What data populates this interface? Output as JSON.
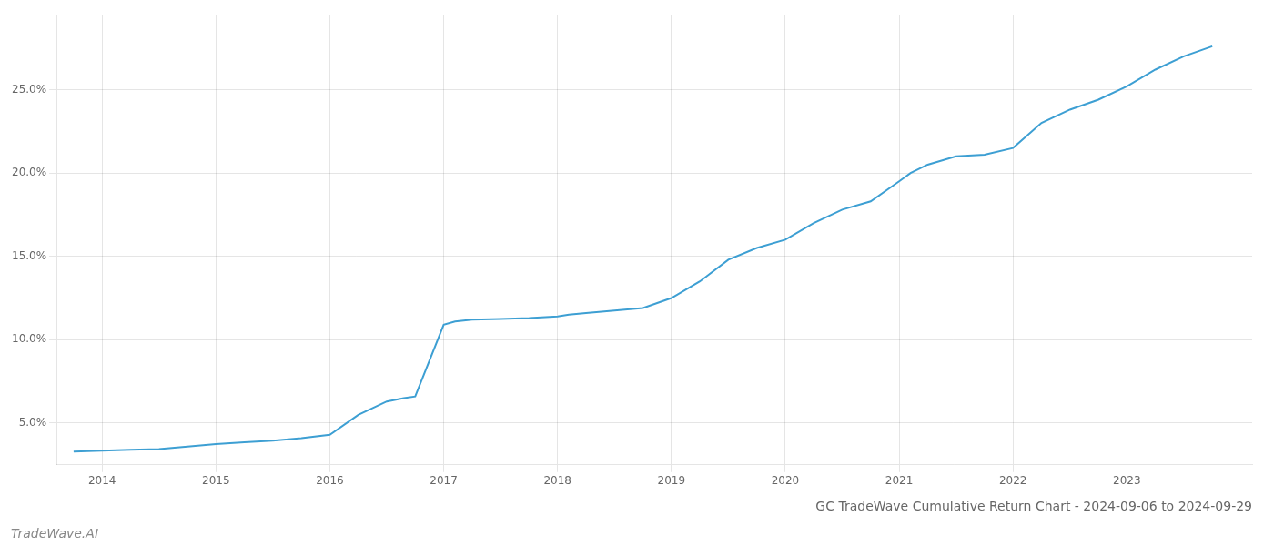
{
  "chart_data": {
    "type": "line",
    "title": "GC TradeWave Cumulative Return Chart - 2024-09-06 to 2024-09-29",
    "annotation": "TradeWave.AI",
    "color": "#3d9fd3",
    "grid": true,
    "x": [
      2013.75,
      2014.0,
      2014.25,
      2014.5,
      2014.75,
      2015.0,
      2015.25,
      2015.5,
      2015.75,
      2016.0,
      2016.25,
      2016.5,
      2016.65,
      2016.75,
      2017.0,
      2017.1,
      2017.25,
      2017.5,
      2017.75,
      2018.0,
      2018.1,
      2018.25,
      2018.5,
      2018.75,
      2019.0,
      2019.25,
      2019.5,
      2019.75,
      2020.0,
      2020.25,
      2020.5,
      2020.75,
      2021.0,
      2021.1,
      2021.25,
      2021.5,
      2021.75,
      2022.0,
      2022.25,
      2022.5,
      2022.75,
      2023.0,
      2023.25,
      2023.5,
      2023.75
    ],
    "values": [
      3.3,
      3.35,
      3.4,
      3.45,
      3.6,
      3.75,
      3.85,
      3.95,
      4.1,
      4.3,
      5.5,
      6.3,
      6.5,
      6.6,
      10.9,
      11.1,
      11.2,
      11.25,
      11.3,
      11.4,
      11.5,
      11.6,
      11.75,
      11.9,
      12.5,
      13.5,
      14.8,
      15.5,
      16.0,
      17.0,
      17.8,
      18.3,
      19.5,
      20.0,
      20.5,
      21.0,
      21.1,
      21.5,
      23.0,
      23.8,
      24.4,
      25.2,
      26.2,
      27.0,
      27.6
    ],
    "xlim": [
      2013.6,
      2024.1
    ],
    "ylim": [
      2.5,
      29.5
    ],
    "xticks": [
      2014,
      2015,
      2016,
      2017,
      2018,
      2019,
      2020,
      2021,
      2022,
      2023
    ],
    "yticks": [
      {
        "value": 5.0,
        "label": "5.0%"
      },
      {
        "value": 10.0,
        "label": "10.0%"
      },
      {
        "value": 15.0,
        "label": "15.0%"
      },
      {
        "value": 20.0,
        "label": "20.0%"
      },
      {
        "value": 25.0,
        "label": "25.0%"
      }
    ]
  }
}
